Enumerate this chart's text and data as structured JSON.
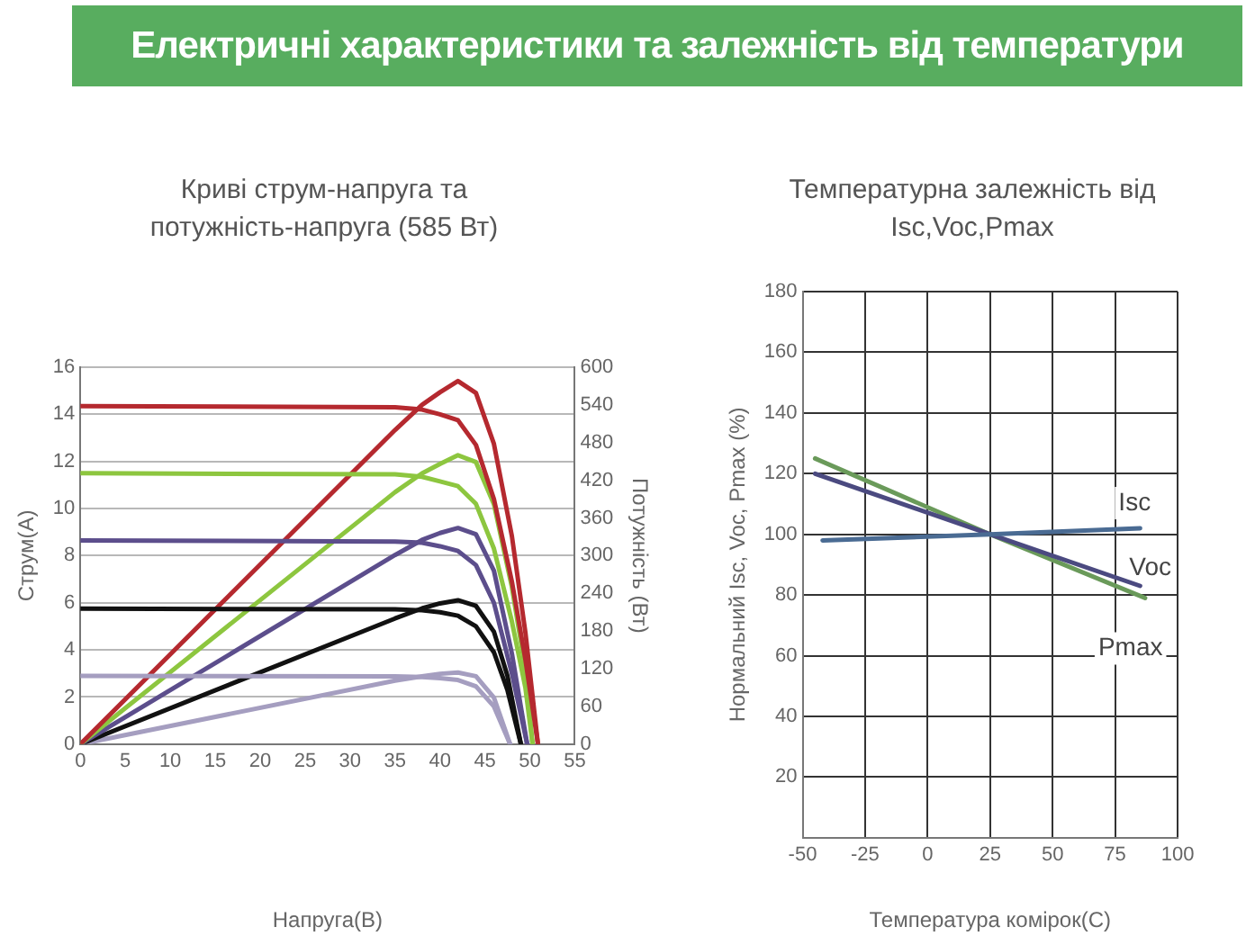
{
  "chart_data": [
    {
      "type": "line",
      "title": "Криві струм-напруга та потужність-напруга (585 Вт)",
      "xlabel": "Напруга(В)",
      "ylabel": "Струм(А)",
      "y2label": "Потужність (Вт)",
      "annotations": [
        "Електричні характеристики та залежність від температури"
      ],
      "xlim": [
        0,
        55
      ],
      "xticks": [
        0,
        5,
        10,
        15,
        20,
        25,
        30,
        35,
        40,
        45,
        50,
        55
      ],
      "ylim": [
        0,
        16
      ],
      "yticks": [
        0,
        2,
        4,
        6,
        8,
        10,
        12,
        14,
        16
      ],
      "y2lim": [
        0,
        600
      ],
      "y2ticks": [
        0,
        60,
        120,
        180,
        240,
        300,
        360,
        420,
        480,
        540,
        600
      ],
      "grid": "y",
      "legend": false,
      "marker": "none",
      "line_style": "solid",
      "series": [
        {
          "color": "#b5292f",
          "x": [
            0,
            35,
            38,
            40,
            42,
            44,
            46,
            48,
            49.5,
            50.9
          ],
          "values": [
            14.35,
            14.3,
            14.2,
            14.0,
            13.75,
            12.7,
            10.4,
            6.9,
            3.6,
            0
          ]
        },
        {
          "color": "#8dc63f",
          "x": [
            0,
            35,
            38,
            40,
            42,
            44,
            46,
            48,
            49.5,
            50.3
          ],
          "values": [
            11.5,
            11.45,
            11.35,
            11.15,
            10.95,
            10.2,
            8.3,
            5.2,
            2.4,
            0
          ]
        },
        {
          "color": "#5c4e8c",
          "x": [
            0,
            35,
            38,
            40,
            42,
            44,
            46,
            48,
            49.7
          ],
          "values": [
            8.65,
            8.6,
            8.55,
            8.4,
            8.2,
            7.6,
            6.0,
            3.0,
            0
          ]
        },
        {
          "color": "#111111",
          "x": [
            0,
            35,
            38,
            40,
            42,
            44,
            46,
            47.5,
            49.0
          ],
          "values": [
            5.75,
            5.72,
            5.68,
            5.6,
            5.45,
            5.0,
            3.9,
            2.3,
            0
          ]
        },
        {
          "color": "#a59ec0",
          "x": [
            0,
            35,
            38,
            40,
            42,
            44,
            46,
            47.8
          ],
          "values": [
            2.9,
            2.88,
            2.85,
            2.8,
            2.72,
            2.45,
            1.6,
            0
          ]
        },
        {
          "color": "#b5292f",
          "axis": "y2",
          "x": [
            0,
            35,
            38,
            40,
            42,
            44,
            46,
            48,
            49.5,
            50.9
          ],
          "values": [
            0,
            500,
            540,
            560,
            578,
            559,
            478,
            331,
            178,
            0
          ]
        },
        {
          "color": "#8dc63f",
          "axis": "y2",
          "x": [
            0,
            35,
            38,
            40,
            42,
            44,
            46,
            48,
            49.5,
            50.3
          ],
          "values": [
            0,
            401,
            431,
            446,
            460,
            449,
            382,
            250,
            119,
            0
          ]
        },
        {
          "color": "#5c4e8c",
          "axis": "y2",
          "x": [
            0,
            35,
            38,
            40,
            42,
            44,
            46,
            48,
            49.7
          ],
          "values": [
            0,
            301,
            325,
            336,
            344,
            334,
            276,
            144,
            0
          ]
        },
        {
          "color": "#111111",
          "axis": "y2",
          "x": [
            0,
            35,
            38,
            40,
            42,
            44,
            46,
            47.5,
            49.0
          ],
          "values": [
            0,
            200,
            216,
            224,
            229,
            220,
            179,
            109,
            0
          ]
        },
        {
          "color": "#a59ec0",
          "axis": "y2",
          "x": [
            0,
            35,
            38,
            40,
            42,
            44,
            46,
            47.8
          ],
          "values": [
            0,
            101,
            108,
            112,
            114,
            108,
            74,
            0
          ]
        }
      ]
    },
    {
      "type": "line",
      "title": "Температурна залежність від Isc,Voc,Pmax",
      "xlabel": "Температура комірок(C)",
      "ylabel": "Нормальний Isc, Voc, Pmax (%)",
      "xlim": [
        -50,
        100
      ],
      "xticks": [
        -50,
        -25,
        0,
        25,
        50,
        75,
        100
      ],
      "ylim": [
        0,
        180
      ],
      "yticks": [
        20,
        40,
        60,
        80,
        100,
        120,
        140,
        160,
        180
      ],
      "grid": true,
      "legend": false,
      "marker": "none",
      "line_style": "solid",
      "series": [
        {
          "name": "Isc",
          "color": "#4a6b93",
          "x": [
            -42,
            25,
            85
          ],
          "values": [
            98,
            100,
            102
          ]
        },
        {
          "name": "Voc",
          "color": "#4b4a80",
          "x": [
            -45,
            25,
            85
          ],
          "values": [
            120,
            100,
            83
          ]
        },
        {
          "name": "Pmax",
          "color": "#6a9a5a",
          "x": [
            -45,
            25,
            87
          ],
          "values": [
            125,
            100,
            79
          ]
        }
      ]
    }
  ]
}
